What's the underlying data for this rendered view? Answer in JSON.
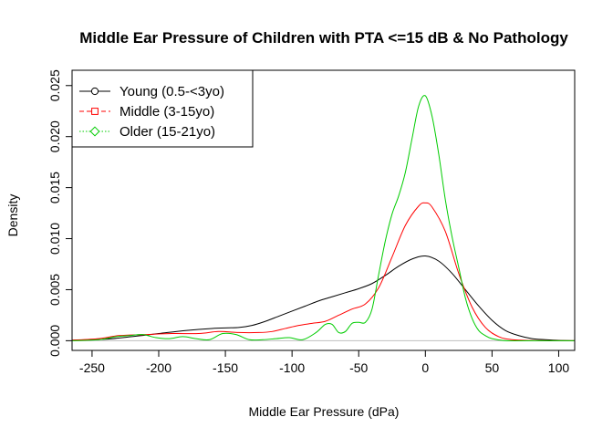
{
  "chart_data": {
    "type": "line",
    "title": "Middle Ear Pressure of Children with PTA <=15 dB & No Pathology",
    "xlabel": "Middle Ear Pressure (dPa)",
    "ylabel": "Density",
    "xlim": [
      -265,
      112
    ],
    "ylim": [
      -0.00095,
      0.0265
    ],
    "xticks": [
      -250,
      -200,
      -150,
      -100,
      -50,
      0,
      50,
      100
    ],
    "xtick_labels": [
      "-250",
      "-200",
      "-150",
      "-100",
      "-50",
      "0",
      "50",
      "100"
    ],
    "yticks": [
      0.0,
      0.005,
      0.01,
      0.015,
      0.02,
      0.025
    ],
    "ytick_labels": [
      "0.000",
      "0.005",
      "0.010",
      "0.015",
      "0.020",
      "0.025"
    ],
    "baseline": 0,
    "legend_position": "top-left",
    "series": [
      {
        "name": "Young (0.5-<3yo)",
        "color": "#000000",
        "line_style": "solid",
        "marker": "circle",
        "x": [
          -265,
          -240,
          -220,
          -200,
          -180,
          -160,
          -140,
          -130,
          -120,
          -110,
          -100,
          -90,
          -80,
          -70,
          -60,
          -50,
          -40,
          -30,
          -20,
          -10,
          0,
          10,
          20,
          30,
          40,
          50,
          60,
          70,
          80,
          90,
          100,
          112
        ],
        "y": [
          5e-05,
          0.00015,
          0.0004,
          0.0007,
          0.001,
          0.0012,
          0.0013,
          0.0015,
          0.0019,
          0.0024,
          0.0029,
          0.0034,
          0.0039,
          0.0043,
          0.0047,
          0.0051,
          0.0056,
          0.0064,
          0.0073,
          0.008,
          0.0083,
          0.0078,
          0.0066,
          0.005,
          0.0034,
          0.002,
          0.001,
          0.0005,
          0.0002,
          0.0001,
          3e-05,
          0.0
        ]
      },
      {
        "name": "Middle (3-15yo)",
        "color": "#ff0000",
        "line_style": "dashed",
        "marker": "square",
        "x": [
          -265,
          -245,
          -230,
          -210,
          -190,
          -170,
          -155,
          -140,
          -125,
          -115,
          -105,
          -95,
          -85,
          -75,
          -65,
          -55,
          -45,
          -35,
          -25,
          -15,
          -5,
          0,
          5,
          15,
          25,
          35,
          45,
          55,
          65,
          80,
          100,
          112
        ],
        "y": [
          5e-05,
          0.0002,
          0.0005,
          0.0006,
          0.0007,
          0.0007,
          0.0009,
          0.0008,
          0.0008,
          0.0009,
          0.0012,
          0.0015,
          0.0017,
          0.0019,
          0.0025,
          0.0031,
          0.0036,
          0.0052,
          0.0082,
          0.0113,
          0.0132,
          0.0135,
          0.0131,
          0.0107,
          0.0066,
          0.0033,
          0.0013,
          0.0004,
          0.0001,
          2e-05,
          0.0,
          0.0
        ]
      },
      {
        "name": "Older (15-21yo)",
        "color": "#00cc00",
        "line_style": "dotted",
        "marker": "diamond",
        "x": [
          -265,
          -245,
          -232,
          -222,
          -212,
          -202,
          -192,
          -182,
          -172,
          -162,
          -152,
          -142,
          -132,
          -122,
          -112,
          -102,
          -92,
          -82,
          -75,
          -70,
          -65,
          -60,
          -55,
          -50,
          -45,
          -40,
          -35,
          -30,
          -25,
          -20,
          -15,
          -10,
          -5,
          0,
          5,
          10,
          15,
          20,
          25,
          30,
          35,
          40,
          45,
          50,
          60,
          80,
          112
        ],
        "y": [
          0.0,
          0.0001,
          0.0004,
          0.0005,
          0.0006,
          0.0003,
          0.0002,
          0.0004,
          0.0002,
          0.0001,
          0.0007,
          0.0006,
          0.0001,
          0.0001,
          0.0002,
          0.0003,
          0.0001,
          0.0008,
          0.0016,
          0.0016,
          0.0008,
          0.0009,
          0.0017,
          0.0018,
          0.0018,
          0.0031,
          0.0065,
          0.0098,
          0.0124,
          0.0142,
          0.0165,
          0.0198,
          0.023,
          0.024,
          0.022,
          0.0183,
          0.0138,
          0.0102,
          0.0072,
          0.0042,
          0.0022,
          0.001,
          0.0005,
          0.0002,
          0.0,
          0.0,
          0.0
        ]
      }
    ]
  }
}
